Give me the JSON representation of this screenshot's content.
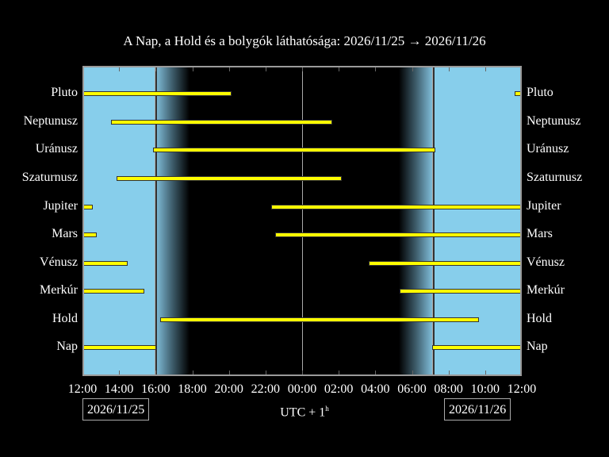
{
  "chart_data": {
    "type": "gantt",
    "title": "A Nap, a Hold és a bolygók láthatósága: 2026/11/25 → 2026/11/26",
    "xlabel": "UTC + 1ʰ",
    "x_range": [
      "2026/11/25 12:00",
      "2026/11/26 12:00"
    ],
    "x_tick_labels": [
      "12:00",
      "14:00",
      "16:00",
      "18:00",
      "20:00",
      "22:00",
      "00:00",
      "02:00",
      "04:00",
      "06:00",
      "08:00",
      "10:00",
      "12:00"
    ],
    "date_labels": [
      "2026/11/25",
      "2026/11/26"
    ],
    "twilight": {
      "sunset": "15:56",
      "dusk_end": "17:46",
      "dawn_start": "05:17",
      "sunrise": "07:06"
    },
    "series": [
      {
        "name": "Pluto",
        "intervals": [
          [
            "12:00",
            "20:03"
          ],
          [
            "11:36",
            "12:00"
          ]
        ]
      },
      {
        "name": "Neptunusz",
        "intervals": [
          [
            "13:34",
            "01:33"
          ]
        ]
      },
      {
        "name": "Uránusz",
        "intervals": [
          [
            "15:51",
            "07:11"
          ]
        ]
      },
      {
        "name": "Szaturnusz",
        "intervals": [
          [
            "13:52",
            "02:05"
          ]
        ]
      },
      {
        "name": "Jupiter",
        "intervals": [
          [
            "12:00",
            "12:29"
          ],
          [
            "22:19",
            "12:00"
          ]
        ]
      },
      {
        "name": "Mars",
        "intervals": [
          [
            "12:00",
            "12:42"
          ],
          [
            "22:32",
            "12:00"
          ]
        ]
      },
      {
        "name": "Vénusz",
        "intervals": [
          [
            "12:00",
            "14:23"
          ],
          [
            "03:38",
            "12:00"
          ]
        ]
      },
      {
        "name": "Merkúr",
        "intervals": [
          [
            "12:00",
            "15:18"
          ],
          [
            "05:20",
            "12:00"
          ]
        ]
      },
      {
        "name": "Hold",
        "intervals": [
          [
            "16:15",
            "09:34"
          ]
        ]
      },
      {
        "name": "Nap",
        "intervals": [
          [
            "12:00",
            "15:56"
          ],
          [
            "07:06",
            "12:00"
          ]
        ]
      }
    ],
    "colors": {
      "day": "#87ceeb",
      "night": "#000000",
      "bar": "#ffff00",
      "frame": "#9a9a9a"
    }
  },
  "labels": {
    "title": "A Nap, a Hold és a bolygók láthatósága: 2026/11/25 → 2026/11/26",
    "xlabel": "UTC + 1",
    "xlabel_sup": "h",
    "date_left": "2026/11/25",
    "date_right": "2026/11/26",
    "rows": [
      "Pluto",
      "Neptunusz",
      "Uránusz",
      "Szaturnusz",
      "Jupiter",
      "Mars",
      "Vénusz",
      "Merkúr",
      "Hold",
      "Nap"
    ],
    "ticks": [
      "12:00",
      "14:00",
      "16:00",
      "18:00",
      "20:00",
      "22:00",
      "00:00",
      "02:00",
      "04:00",
      "06:00",
      "08:00",
      "10:00",
      "12:00"
    ]
  }
}
